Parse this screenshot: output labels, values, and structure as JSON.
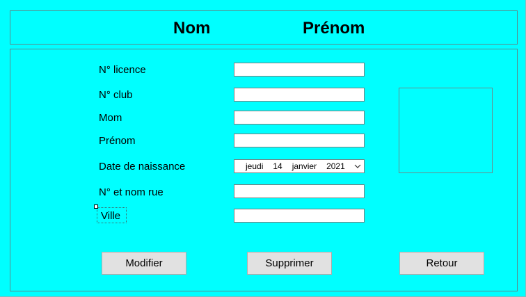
{
  "header": {
    "nom_title": "Nom",
    "prenom_title": "Prénom"
  },
  "form": {
    "licence_label": "N° licence",
    "club_label": "N° club",
    "mom_label": "Mom",
    "prenom_label": "Prénom",
    "birthdate_label": "Date de naissance",
    "street_label": "N° et nom rue",
    "ville_label": "Ville",
    "licence_value": "",
    "club_value": "",
    "mom_value": "",
    "prenom_value": "",
    "street_value": "",
    "ville_value": "",
    "birthdate": {
      "weekday": "jeudi",
      "day": "14",
      "month": "janvier",
      "year": "2021"
    }
  },
  "buttons": {
    "modifier": "Modifier",
    "supprimer": "Supprimer",
    "retour": "Retour"
  },
  "icons": {
    "date_dropdown": "chevron-down-icon"
  },
  "colors": {
    "background": "#00ffff",
    "button_face": "#e1e1e1"
  }
}
